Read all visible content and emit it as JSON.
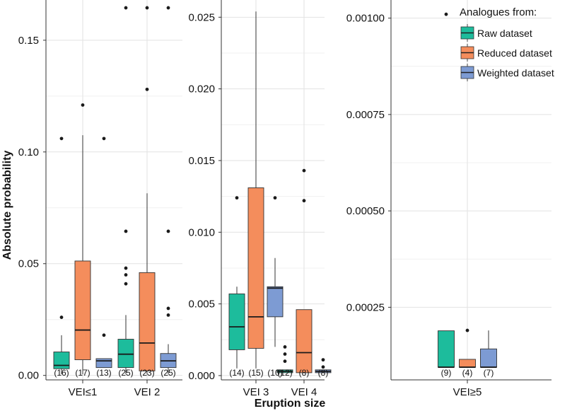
{
  "chart_data": {
    "type": "box",
    "ylabel": "Absolute probability",
    "xlabel": "Eruption size",
    "legend": {
      "title": "Analogues from:",
      "placement": "top-right",
      "entries": [
        {
          "name": "Raw dataset",
          "color": "#1dbc9c"
        },
        {
          "name": "Reduced dataset",
          "color": "#f48d5c"
        },
        {
          "name": "Weighted dataset",
          "color": "#7d9bd3"
        }
      ]
    },
    "panels": [
      {
        "ylim": [
          -0.002,
          0.168
        ],
        "yticks": [
          0.0,
          0.05,
          0.1,
          0.15
        ],
        "ytick_labels": [
          "0.00",
          "0.05",
          "0.10",
          "0.15"
        ],
        "categories": [
          {
            "label": "VEI≤1",
            "boxes": [
              {
                "series": "Raw dataset",
                "q1": 0.003,
                "median": 0.0045,
                "q3": 0.0105,
                "whisker_low": 0.0005,
                "whisker_high": 0.018,
                "outliers": [
                  0.026,
                  0.106
                ],
                "count": "(16)"
              },
              {
                "series": "Reduced dataset",
                "q1": 0.007,
                "median": 0.0203,
                "q3": 0.0512,
                "whisker_low": 0.0005,
                "whisker_high": 0.1075,
                "outliers": [
                  0.121
                ],
                "count": "(17)"
              },
              {
                "series": "Weighted dataset",
                "q1": 0.0035,
                "median": 0.0065,
                "q3": 0.0075,
                "whisker_low": 0.0035,
                "whisker_high": 0.0075,
                "outliers": [
                  0.018,
                  0.106
                ],
                "count": "(13)"
              }
            ]
          },
          {
            "label": "VEI 2",
            "boxes": [
              {
                "series": "Raw dataset",
                "q1": 0.0035,
                "median": 0.0095,
                "q3": 0.0162,
                "whisker_low": 0.0005,
                "whisker_high": 0.027,
                "outliers": [
                  0.041,
                  0.045,
                  0.048,
                  0.0645,
                  0.1645
                ],
                "count": "(25)"
              },
              {
                "series": "Reduced dataset",
                "q1": 0.002,
                "median": 0.0145,
                "q3": 0.046,
                "whisker_low": 0.0005,
                "whisker_high": 0.0815,
                "outliers": [
                  0.128,
                  0.1645
                ],
                "count": "(23)"
              },
              {
                "series": "Weighted dataset",
                "q1": 0.0035,
                "median": 0.0065,
                "q3": 0.0098,
                "whisker_low": 0.0005,
                "whisker_high": 0.014,
                "outliers": [
                  0.027,
                  0.03,
                  0.0645,
                  0.1645
                ],
                "count": "(25)"
              }
            ]
          }
        ]
      },
      {
        "ylim": [
          -0.0003,
          0.0262
        ],
        "yticks": [
          0.0,
          0.005,
          0.01,
          0.015,
          0.02,
          0.025
        ],
        "ytick_labels": [
          "0.000",
          "0.005",
          "0.010",
          "0.015",
          "0.020",
          "0.025"
        ],
        "categories": [
          {
            "label": "VEI 3",
            "boxes": [
              {
                "series": "Raw dataset",
                "q1": 0.0018,
                "median": 0.0034,
                "q3": 0.0057,
                "whisker_low": 0.0005,
                "whisker_high": 0.0062,
                "outliers": [
                  0.0124
                ],
                "count": "(14)"
              },
              {
                "series": "Reduced dataset",
                "q1": 0.0019,
                "median": 0.0041,
                "q3": 0.0131,
                "whisker_low": 0.0005,
                "whisker_high": 0.0254,
                "outliers": [],
                "count": "(15)"
              },
              {
                "series": "Weighted dataset",
                "q1": 0.0041,
                "median": 0.0061,
                "q3": 0.0062,
                "whisker_low": 0.002,
                "whisker_high": 0.0082,
                "outliers": [
                  0.0124
                ],
                "count": "(10)"
              }
            ]
          },
          {
            "label": "VEI 4",
            "boxes": [
              {
                "series": "Raw dataset",
                "q1": 0.0002,
                "median": 0.0003,
                "q3": 0.0004,
                "whisker_low": 0.0002,
                "whisker_high": 0.0004,
                "outliers": [
                  0.001,
                  0.0015,
                  0.002
                ],
                "count": "(12)"
              },
              {
                "series": "Reduced dataset",
                "q1": 0.0002,
                "median": 0.0016,
                "q3": 0.0046,
                "whisker_low": 0.0002,
                "whisker_high": 0.0046,
                "outliers": [
                  0.0122,
                  0.0143
                ],
                "count": "(8)"
              },
              {
                "series": "Weighted dataset",
                "q1": 0.0002,
                "median": 0.0003,
                "q3": 0.0004,
                "whisker_low": 0.0002,
                "whisker_high": 0.0004,
                "outliers": [
                  0.0006,
                  0.0011
                ],
                "count": "(8)"
              }
            ]
          }
        ]
      },
      {
        "ylim": [
          6.17e-05,
          0.001047
        ],
        "yticks": [
          0.00025,
          0.0005,
          0.00075,
          0.001
        ],
        "ytick_labels": [
          "0.00025",
          "0.00050",
          "0.00075",
          "0.00100"
        ],
        "categories": [
          {
            "label": "VEI≥5",
            "boxes": [
              {
                "series": "Raw dataset",
                "q1": 9.46e-05,
                "median": 9.46e-05,
                "q3": 0.000189,
                "whisker_low": 9.46e-05,
                "whisker_high": 0.000189,
                "outliers": [
                  0.00101
                ],
                "count": "(9)"
              },
              {
                "series": "Reduced dataset",
                "q1": 9.46e-05,
                "median": 9.46e-05,
                "q3": 0.000115,
                "whisker_low": 9.46e-05,
                "whisker_high": 0.000115,
                "outliers": [
                  0.00019
                ],
                "count": "(4)"
              },
              {
                "series": "Weighted dataset",
                "q1": 9.46e-05,
                "median": 9.46e-05,
                "q3": 0.000142,
                "whisker_low": 9.46e-05,
                "whisker_high": 0.00019,
                "outliers": [],
                "count": "(7)"
              }
            ]
          }
        ]
      }
    ]
  }
}
